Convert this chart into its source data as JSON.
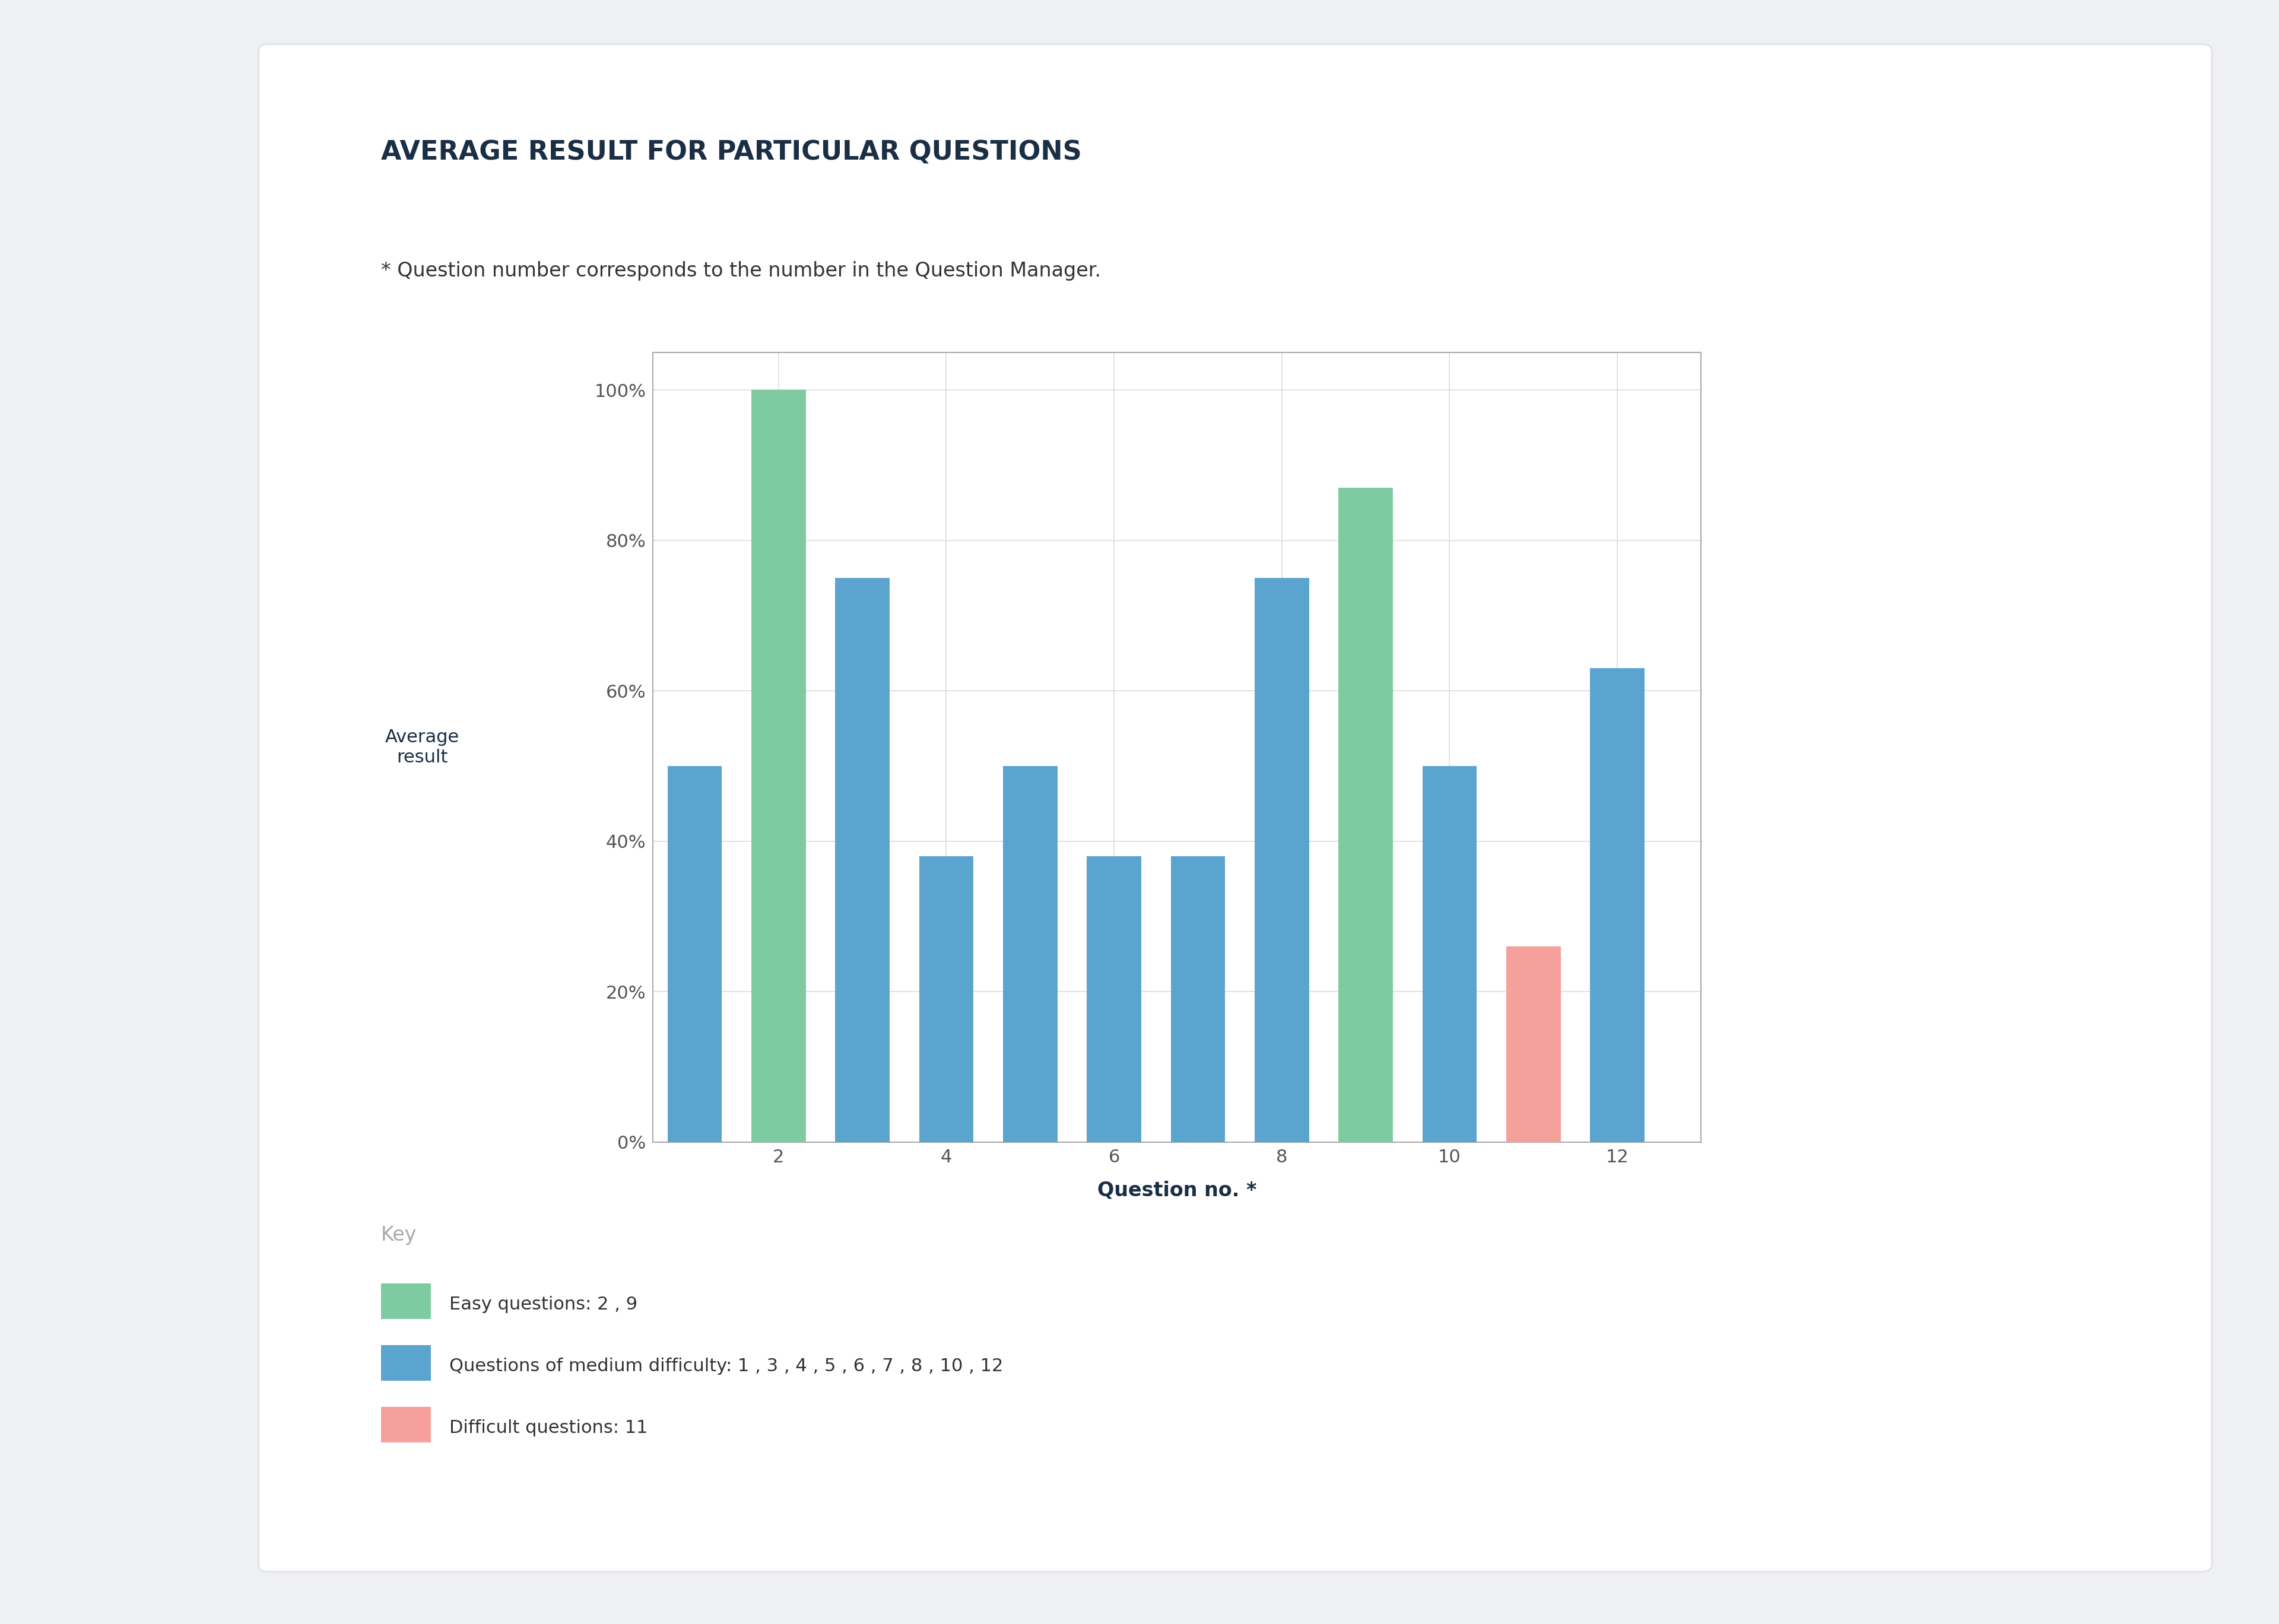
{
  "title": "AVERAGE RESULT FOR PARTICULAR QUESTIONS",
  "subtitle": "* Question number corresponds to the number in the Question Manager.",
  "xlabel": "Question no. *",
  "ylabel": "Average\nresult",
  "questions": [
    1,
    2,
    3,
    4,
    5,
    6,
    7,
    8,
    9,
    10,
    11,
    12
  ],
  "values": [
    0.5,
    1.0,
    0.75,
    0.38,
    0.5,
    0.38,
    0.38,
    0.75,
    0.87,
    0.5,
    0.26,
    0.63
  ],
  "colors": [
    "#5ba4cf",
    "#7ecba1",
    "#5ba4cf",
    "#5ba4cf",
    "#5ba4cf",
    "#5ba4cf",
    "#5ba4cf",
    "#5ba4cf",
    "#7ecba1",
    "#5ba4cf",
    "#f5a09b",
    "#5ba4cf"
  ],
  "easy_color": "#7ecba1",
  "medium_color": "#5ba4cf",
  "difficult_color": "#f5a09b",
  "key_title": "Key",
  "legend_easy": "Easy questions: 2 , 9",
  "legend_medium": "Questions of medium difficulty: 1 , 3 , 4 , 5 , 6 , 7 , 8 , 10 , 12",
  "legend_difficult": "Difficult questions: 11",
  "background_outer": "#eef0f3",
  "background_card": "#ffffff",
  "title_color": "#1a2e44",
  "subtitle_color": "#333333",
  "axis_text_color": "#555555",
  "grid_color": "#dddddd",
  "spine_color": "#aaaaaa",
  "key_color": "#aaaaaa",
  "ylim": [
    0,
    1.05
  ],
  "yticks": [
    0.0,
    0.2,
    0.4,
    0.6,
    0.8,
    1.0
  ],
  "ytick_labels": [
    "0%",
    "20%",
    "40%",
    "60%",
    "80%",
    "100%"
  ],
  "xticks": [
    2,
    4,
    6,
    8,
    10,
    12
  ],
  "bar_width": 0.65
}
